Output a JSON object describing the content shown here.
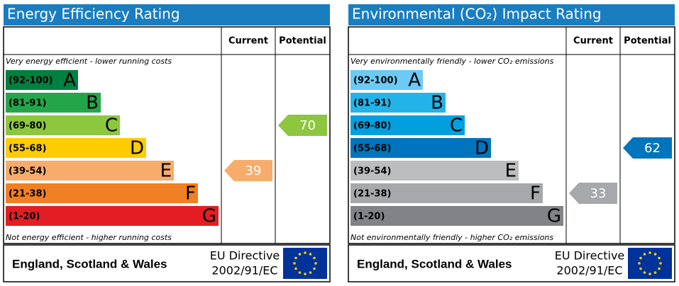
{
  "chart_data": [
    {
      "type": "epc",
      "title": "Energy Efficiency Rating",
      "columns": [
        "Current",
        "Potential"
      ],
      "top_note": "Very energy efficient - lower running costs",
      "bottom_note": "Not energy efficient - higher running costs",
      "bands": [
        {
          "range": "(92-100)",
          "letter": "A",
          "color": "#008040"
        },
        {
          "range": "(81-91)",
          "letter": "B",
          "color": "#23a64a"
        },
        {
          "range": "(69-80)",
          "letter": "C",
          "color": "#8dc63f"
        },
        {
          "range": "(55-68)",
          "letter": "D",
          "color": "#ffcc00"
        },
        {
          "range": "(39-54)",
          "letter": "E",
          "color": "#f7ac6c"
        },
        {
          "range": "(21-38)",
          "letter": "F",
          "color": "#ef8023"
        },
        {
          "range": "(1-20)",
          "letter": "G",
          "color": "#e31d23"
        }
      ],
      "values": [
        39,
        70
      ],
      "footer": {
        "region": "England, Scotland & Wales",
        "directive": "EU Directive",
        "code": "2002/91/EC"
      }
    },
    {
      "type": "epc",
      "title": "Environmental (CO₂) Impact Rating",
      "columns": [
        "Current",
        "Potential"
      ],
      "top_note": "Very environmentally friendly - lower CO₂ emissions",
      "bottom_note": "Not environmentally friendly - higher CO₂ emissions",
      "bands": [
        {
          "range": "(92-100)",
          "letter": "A",
          "color": "#6ccaf4"
        },
        {
          "range": "(81-91)",
          "letter": "B",
          "color": "#22b4e8"
        },
        {
          "range": "(69-80)",
          "letter": "C",
          "color": "#00a0de"
        },
        {
          "range": "(55-68)",
          "letter": "D",
          "color": "#0074bc"
        },
        {
          "range": "(39-54)",
          "letter": "E",
          "color": "#bbbdbf"
        },
        {
          "range": "(21-38)",
          "letter": "F",
          "color": "#a6a8ab"
        },
        {
          "range": "(1-20)",
          "letter": "G",
          "color": "#818386"
        }
      ],
      "values": [
        33,
        62
      ],
      "footer": {
        "region": "England, Scotland & Wales",
        "directive": "EU Directive",
        "code": "2002/91/EC"
      }
    }
  ]
}
